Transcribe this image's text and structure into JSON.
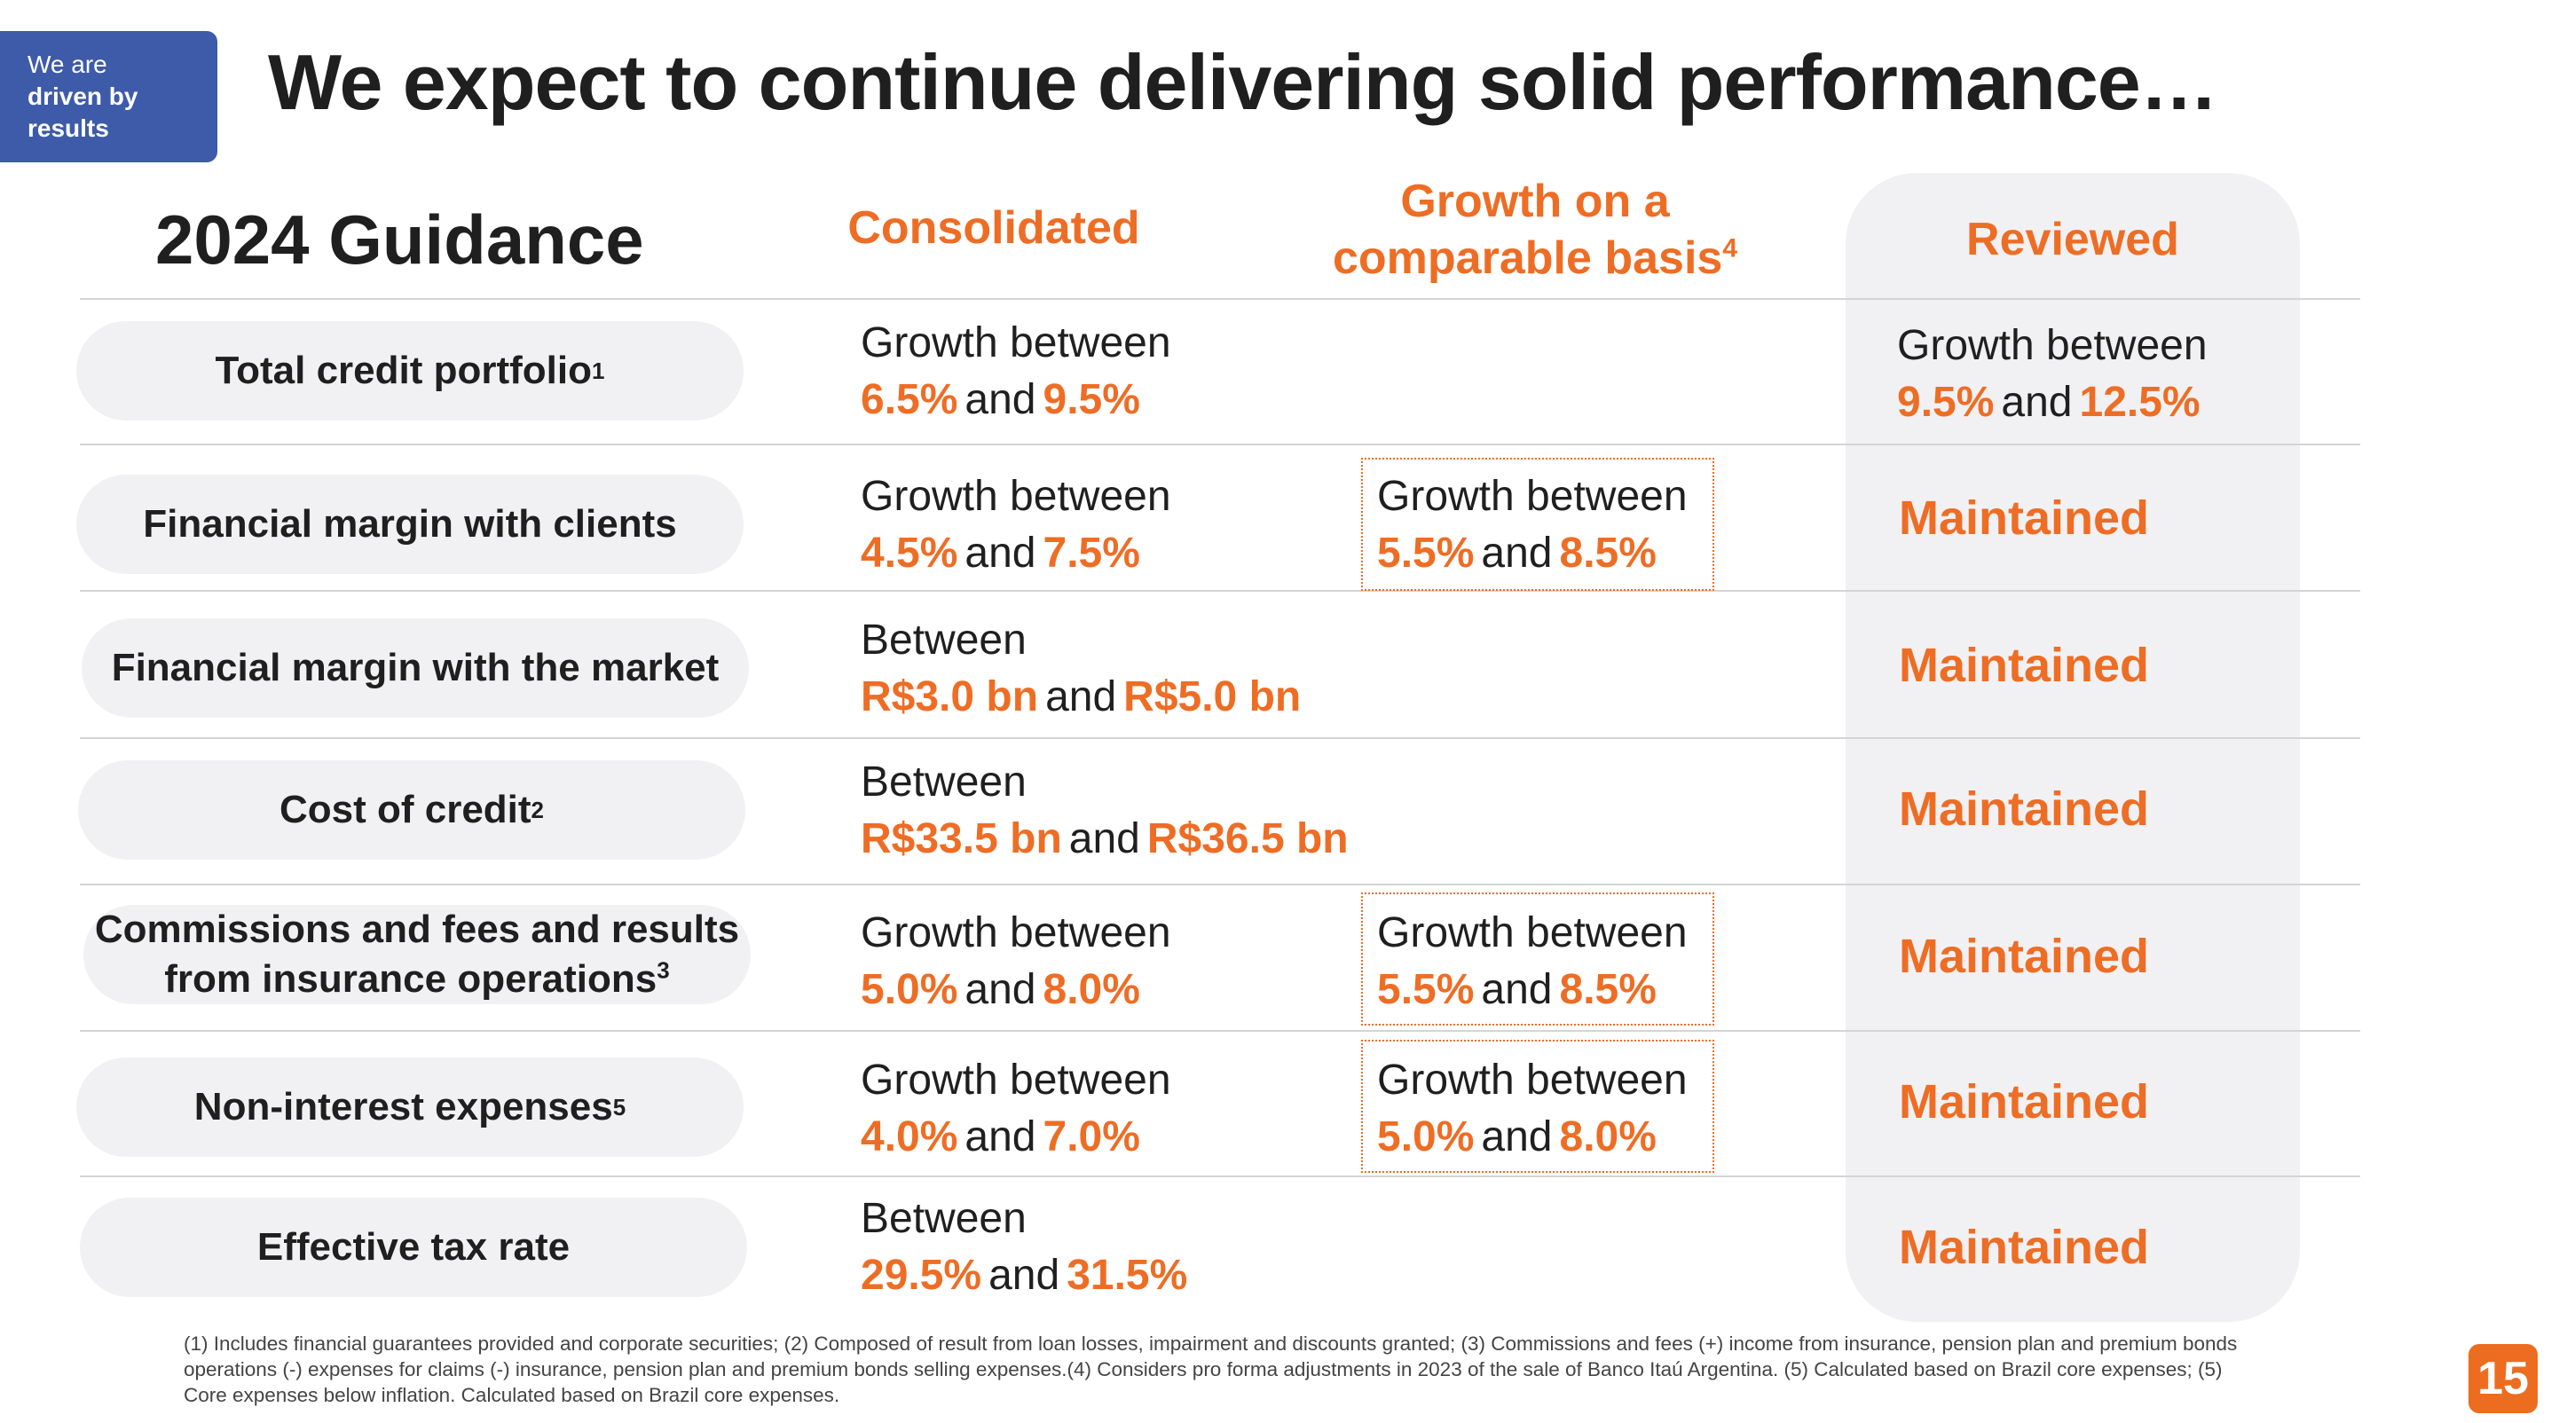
{
  "badge": {
    "line1": "We are",
    "line2": "driven by",
    "line3": "results"
  },
  "title": "We expect to continue delivering solid performance…",
  "header": {
    "guidance": "2024 Guidance",
    "consolidated": "Consolidated",
    "growth_line1": "Growth on a",
    "growth_line2": "comparable basis",
    "growth_note": "4",
    "reviewed": "Reviewed"
  },
  "connector": "and",
  "rows": [
    {
      "label": "Total credit portfolio",
      "note": "1",
      "consolidated": {
        "prefix": "Growth between",
        "low": "6.5%",
        "high": "9.5%"
      },
      "reviewed": {
        "prefix": "Growth between",
        "low": "9.5%",
        "high": "12.5%"
      }
    },
    {
      "label": "Financial margin with clients",
      "consolidated": {
        "prefix": "Growth between",
        "low": "4.5%",
        "high": "7.5%"
      },
      "comparable": {
        "prefix": "Growth between",
        "low": "5.5%",
        "high": "8.5%"
      },
      "reviewed": "Maintained"
    },
    {
      "label": "Financial margin with the market",
      "consolidated": {
        "prefix": "Between",
        "low": "R$3.0 bn",
        "high": "R$5.0 bn"
      },
      "reviewed": "Maintained"
    },
    {
      "label": "Cost of credit",
      "note": "2",
      "consolidated": {
        "prefix": "Between",
        "low": "R$33.5 bn",
        "high": "R$36.5 bn"
      },
      "reviewed": "Maintained"
    },
    {
      "label_line1": "Commissions and fees and results",
      "label_line2": "from insurance operations",
      "note": "3",
      "consolidated": {
        "prefix": "Growth between",
        "low": "5.0%",
        "high": "8.0%"
      },
      "comparable": {
        "prefix": "Growth between",
        "low": "5.5%",
        "high": "8.5%"
      },
      "reviewed": "Maintained"
    },
    {
      "label": "Non-interest expenses",
      "note": "5",
      "consolidated": {
        "prefix": "Growth between",
        "low": "4.0%",
        "high": "7.0%"
      },
      "comparable": {
        "prefix": "Growth between",
        "low": "5.0%",
        "high": "8.0%"
      },
      "reviewed": "Maintained"
    },
    {
      "label": "Effective tax rate",
      "consolidated": {
        "prefix": "Between",
        "low": "29.5%",
        "high": "31.5%"
      },
      "reviewed": "Maintained"
    }
  ],
  "footnote": "(1) Includes financial guarantees provided and corporate securities; (2) Composed of result from loan losses, impairment and discounts granted; (3) Commissions and fees (+) income from insurance, pension plan and premium bonds operations (-) expenses for claims (-) insurance, pension plan and premium bonds selling expenses.(4) Considers pro forma adjustments in 2023 of the sale of Banco Itaú Argentina. (5) Calculated based on Brazil core expenses; (5) Core expenses below inflation. Calculated based on Brazil core expenses.",
  "page_number": "15",
  "colors": {
    "accent": "#ee6d25",
    "badge": "#3d5ba9",
    "pill": "#f1f1f3"
  }
}
